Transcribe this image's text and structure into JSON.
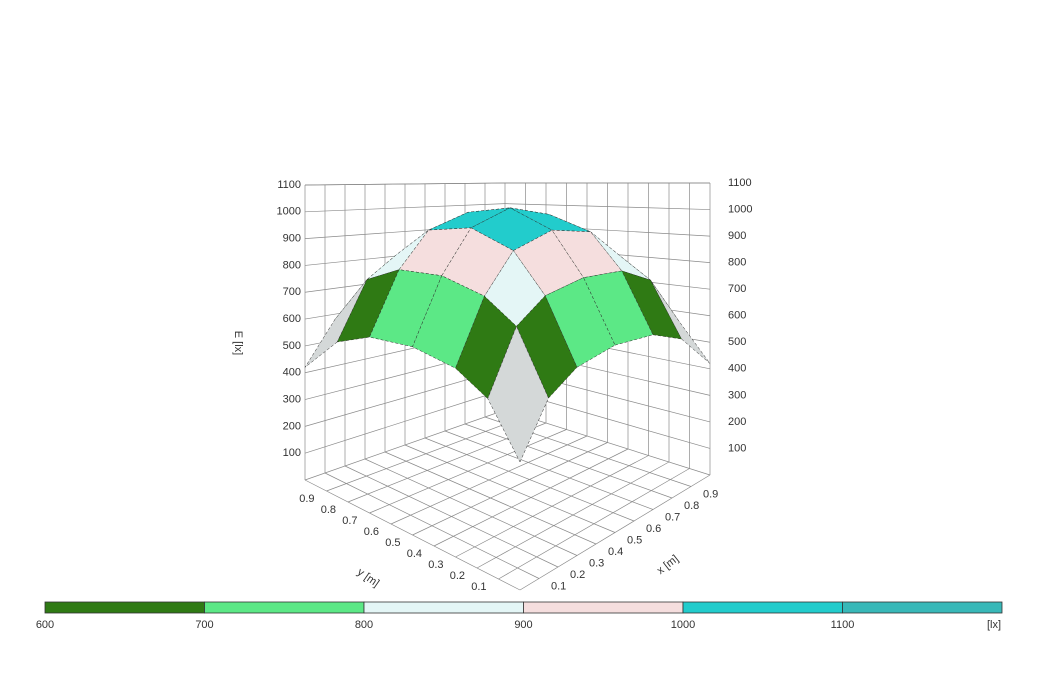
{
  "chart_data": {
    "type": "surface3d",
    "zlabel": "E [lx]",
    "xlabel": "x [m]",
    "ylabel": "y [m]",
    "x_grid": [
      0,
      0.15,
      0.3,
      0.5,
      0.7,
      0.85,
      1
    ],
    "y_grid": [
      0,
      0.15,
      0.3,
      0.5,
      0.7,
      0.85,
      1
    ],
    "values": [
      [
        400,
        560,
        620,
        640,
        620,
        560,
        420
      ],
      [
        560,
        760,
        830,
        850,
        830,
        760,
        560
      ],
      [
        620,
        830,
        960,
        1000,
        960,
        840,
        620
      ],
      [
        640,
        860,
        1010,
        1060,
        1010,
        860,
        650
      ],
      [
        620,
        840,
        970,
        1020,
        970,
        840,
        620
      ],
      [
        560,
        770,
        850,
        880,
        850,
        770,
        560
      ],
      [
        420,
        580,
        630,
        650,
        630,
        580,
        430
      ]
    ],
    "xlim": [
      0,
      1
    ],
    "ylim": [
      0,
      1
    ],
    "zlim": [
      0,
      1100
    ],
    "xticks": [
      0.1,
      0.2,
      0.3,
      0.4,
      0.5,
      0.6,
      0.7,
      0.8,
      0.9
    ],
    "yticks": [
      0.1,
      0.2,
      0.3,
      0.4,
      0.5,
      0.6,
      0.7,
      0.8,
      0.9
    ],
    "zticks": [
      100,
      200,
      300,
      400,
      500,
      600,
      700,
      800,
      900,
      1000,
      1100
    ],
    "below_color": "#d4d8d8",
    "colorbar": {
      "levels": [
        600,
        700,
        800,
        900,
        1000,
        1100
      ],
      "colors": [
        "#2f7a14",
        "#5ce886",
        "#e4f6f6",
        "#f5dede",
        "#22cccc",
        "#38b8b8"
      ],
      "unit_label": "[lx]"
    }
  }
}
